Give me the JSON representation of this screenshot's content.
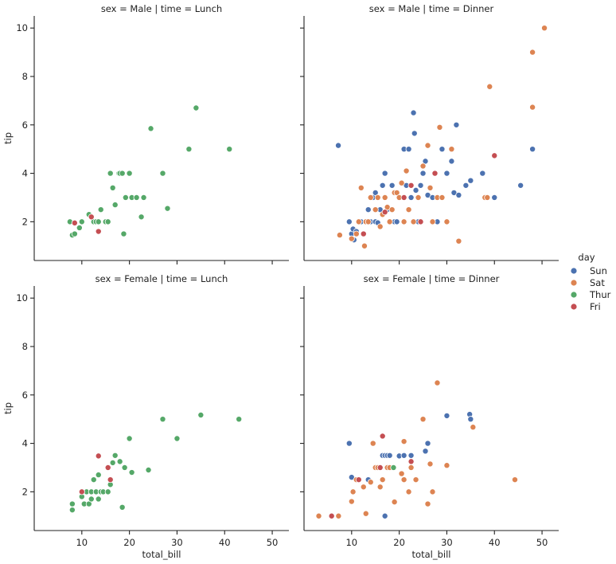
{
  "chart_data": {
    "type": "scatter",
    "xlabel": "total_bill",
    "ylabel": "tip",
    "xlim": [
      0,
      53.5
    ],
    "ylim": [
      0.4,
      10.5
    ],
    "xticks": [
      10,
      20,
      30,
      40,
      50
    ],
    "yticks": [
      2,
      4,
      6,
      8,
      10
    ],
    "legend": {
      "title": "day",
      "placement": "center-right",
      "entries": [
        {
          "label": "Sun",
          "color": "#4c72b0"
        },
        {
          "label": "Sat",
          "color": "#dd8452"
        },
        {
          "label": "Thur",
          "color": "#55a868"
        },
        {
          "label": "Fri",
          "color": "#c44e52"
        }
      ]
    },
    "panels": [
      {
        "title": "sex = Male | time = Lunch",
        "series": [
          {
            "name": "Thur",
            "points": [
              [
                7.5,
                2.0
              ],
              [
                8.0,
                1.45
              ],
              [
                8.5,
                1.5
              ],
              [
                9.5,
                1.75
              ],
              [
                10.0,
                2.0
              ],
              [
                11.5,
                2.3
              ],
              [
                12.5,
                2.0
              ],
              [
                13.0,
                2.0
              ],
              [
                13.5,
                2.0
              ],
              [
                14.0,
                2.5
              ],
              [
                15.0,
                2.0
              ],
              [
                15.5,
                2.0
              ],
              [
                16.0,
                4.0
              ],
              [
                16.5,
                3.4
              ],
              [
                17.0,
                2.7
              ],
              [
                17.8,
                4.0
              ],
              [
                18.0,
                4.0
              ],
              [
                18.5,
                4.0
              ],
              [
                18.8,
                1.5
              ],
              [
                19.2,
                3.0
              ],
              [
                20.0,
                4.0
              ],
              [
                20.5,
                3.0
              ],
              [
                21.5,
                3.0
              ],
              [
                22.5,
                2.2
              ],
              [
                23.0,
                3.0
              ],
              [
                24.5,
                5.85
              ],
              [
                27.0,
                4.0
              ],
              [
                28.0,
                2.55
              ],
              [
                32.5,
                5.0
              ],
              [
                34.0,
                6.7
              ],
              [
                41.0,
                5.0
              ]
            ]
          },
          {
            "name": "Fri",
            "points": [
              [
                8.5,
                1.95
              ],
              [
                12.0,
                2.2
              ],
              [
                13.5,
                1.6
              ]
            ]
          }
        ]
      },
      {
        "title": "sex = Male | time = Dinner",
        "series": [
          {
            "name": "Sun",
            "points": [
              [
                7.2,
                5.15
              ],
              [
                9.5,
                2.0
              ],
              [
                10.0,
                1.5
              ],
              [
                10.3,
                1.7
              ],
              [
                10.5,
                1.25
              ],
              [
                11.0,
                1.6
              ],
              [
                12.0,
                2.0
              ],
              [
                13.0,
                2.0
              ],
              [
                13.5,
                2.5
              ],
              [
                14.0,
                2.0
              ],
              [
                14.5,
                3.0
              ],
              [
                15.0,
                2.0
              ],
              [
                15.0,
                3.2
              ],
              [
                15.5,
                1.96
              ],
              [
                16.0,
                2.5
              ],
              [
                16.5,
                3.5
              ],
              [
                17.0,
                4.0
              ],
              [
                17.5,
                2.5
              ],
              [
                18.0,
                2.0
              ],
              [
                18.5,
                3.5
              ],
              [
                19.0,
                2.0
              ],
              [
                19.5,
                2.0
              ],
              [
                20.0,
                3.0
              ],
              [
                21.0,
                5.0
              ],
              [
                21.5,
                3.5
              ],
              [
                22.0,
                5.0
              ],
              [
                22.5,
                3.0
              ],
              [
                23.0,
                6.5
              ],
              [
                23.2,
                5.65
              ],
              [
                23.5,
                3.3
              ],
              [
                24.0,
                2.0
              ],
              [
                24.5,
                3.5
              ],
              [
                25.0,
                4.0
              ],
              [
                25.5,
                4.5
              ],
              [
                26.0,
                3.1
              ],
              [
                27.0,
                3.0
              ],
              [
                28.0,
                2.0
              ],
              [
                29.0,
                5.0
              ],
              [
                30.0,
                4.0
              ],
              [
                31.0,
                4.5
              ],
              [
                31.5,
                3.2
              ],
              [
                32.0,
                6.0
              ],
              [
                32.5,
                3.1
              ],
              [
                34.0,
                3.5
              ],
              [
                35.0,
                3.7
              ],
              [
                37.5,
                4.0
              ],
              [
                38.0,
                3.0
              ],
              [
                40.0,
                3.0
              ],
              [
                45.5,
                3.5
              ],
              [
                48.0,
                5.0
              ]
            ]
          },
          {
            "name": "Sat",
            "points": [
              [
                7.5,
                1.45
              ],
              [
                10.0,
                1.3
              ],
              [
                11.0,
                1.5
              ],
              [
                11.5,
                2.0
              ],
              [
                12.0,
                3.4
              ],
              [
                12.5,
                1.5
              ],
              [
                12.7,
                1.0
              ],
              [
                13.0,
                2.0
              ],
              [
                13.5,
                2.0
              ],
              [
                14.0,
                3.0
              ],
              [
                15.0,
                2.5
              ],
              [
                15.5,
                3.0
              ],
              [
                16.0,
                1.8
              ],
              [
                16.5,
                2.3
              ],
              [
                17.0,
                3.0
              ],
              [
                17.5,
                2.6
              ],
              [
                18.0,
                2.0
              ],
              [
                18.5,
                2.5
              ],
              [
                19.0,
                3.2
              ],
              [
                19.5,
                3.2
              ],
              [
                20.0,
                3.0
              ],
              [
                20.5,
                3.6
              ],
              [
                21.0,
                2.0
              ],
              [
                21.5,
                4.1
              ],
              [
                22.0,
                2.5
              ],
              [
                23.0,
                2.0
              ],
              [
                24.0,
                3.0
              ],
              [
                25.0,
                4.3
              ],
              [
                26.0,
                5.15
              ],
              [
                26.5,
                3.4
              ],
              [
                27.0,
                2.0
              ],
              [
                28.0,
                3.0
              ],
              [
                28.5,
                5.9
              ],
              [
                29.0,
                3.0
              ],
              [
                30.0,
                2.0
              ],
              [
                31.0,
                5.0
              ],
              [
                32.5,
                1.2
              ],
              [
                38.0,
                3.0
              ],
              [
                38.5,
                3.0
              ],
              [
                39.0,
                7.58
              ],
              [
                48.0,
                9.0
              ],
              [
                48.0,
                6.73
              ],
              [
                50.5,
                10.0
              ]
            ]
          },
          {
            "name": "Fri",
            "points": [
              [
                12.5,
                1.5
              ],
              [
                17.0,
                2.4
              ],
              [
                21.0,
                3.0
              ],
              [
                22.5,
                3.5
              ],
              [
                24.5,
                2.0
              ],
              [
                27.5,
                4.0
              ],
              [
                40.0,
                4.73
              ]
            ]
          }
        ]
      },
      {
        "title": "sex = Female | time = Lunch",
        "series": [
          {
            "name": "Thur",
            "points": [
              [
                8.0,
                1.25
              ],
              [
                8.0,
                1.5
              ],
              [
                10.0,
                1.8
              ],
              [
                10.5,
                1.5
              ],
              [
                11.0,
                2.0
              ],
              [
                11.5,
                1.5
              ],
              [
                12.0,
                1.7
              ],
              [
                12.0,
                2.0
              ],
              [
                12.5,
                2.5
              ],
              [
                13.0,
                2.0
              ],
              [
                13.5,
                1.7
              ],
              [
                13.5,
                2.7
              ],
              [
                14.0,
                2.0
              ],
              [
                14.5,
                2.0
              ],
              [
                15.5,
                2.0
              ],
              [
                16.0,
                2.3
              ],
              [
                16.5,
                3.2
              ],
              [
                17.0,
                3.5
              ],
              [
                18.0,
                3.25
              ],
              [
                18.5,
                1.36
              ],
              [
                19.0,
                3.0
              ],
              [
                20.0,
                4.2
              ],
              [
                20.5,
                2.8
              ],
              [
                24.0,
                2.9
              ],
              [
                27.0,
                5.0
              ],
              [
                30.0,
                4.2
              ],
              [
                35.0,
                5.17
              ],
              [
                43.0,
                5.0
              ]
            ]
          },
          {
            "name": "Fri",
            "points": [
              [
                10.0,
                2.0
              ],
              [
                13.5,
                3.48
              ],
              [
                15.5,
                3.0
              ],
              [
                16.0,
                2.5
              ]
            ]
          }
        ]
      },
      {
        "title": "sex = Female | time = Dinner",
        "series": [
          {
            "name": "Sun",
            "points": [
              [
                9.5,
                4.0
              ],
              [
                10.0,
                2.6
              ],
              [
                13.5,
                2.5
              ],
              [
                15.0,
                3.0
              ],
              [
                16.5,
                3.5
              ],
              [
                17.0,
                1.0
              ],
              [
                17.0,
                3.5
              ],
              [
                17.5,
                3.5
              ],
              [
                18.0,
                3.5
              ],
              [
                18.5,
                3.0
              ],
              [
                20.0,
                3.48
              ],
              [
                21.0,
                3.5
              ],
              [
                22.5,
                3.5
              ],
              [
                25.5,
                3.68
              ],
              [
                26.0,
                4.0
              ],
              [
                30.0,
                5.14
              ],
              [
                34.8,
                5.2
              ],
              [
                35.0,
                5.0
              ]
            ]
          },
          {
            "name": "Sat",
            "points": [
              [
                3.1,
                1.0
              ],
              [
                5.75,
                1.0
              ],
              [
                7.25,
                1.0
              ],
              [
                10.0,
                1.6
              ],
              [
                10.3,
                2.0
              ],
              [
                11.0,
                2.5
              ],
              [
                12.5,
                2.2
              ],
              [
                13.0,
                1.1
              ],
              [
                14.0,
                2.4
              ],
              [
                14.5,
                4.0
              ],
              [
                15.0,
                3.0
              ],
              [
                15.5,
                3.0
              ],
              [
                16.0,
                2.2
              ],
              [
                16.5,
                2.5
              ],
              [
                17.5,
                3.0
              ],
              [
                18.0,
                3.0
              ],
              [
                19.0,
                1.58
              ],
              [
                20.5,
                2.75
              ],
              [
                21.0,
                2.5
              ],
              [
                21.0,
                4.08
              ],
              [
                22.0,
                2.0
              ],
              [
                22.5,
                3.0
              ],
              [
                23.5,
                2.5
              ],
              [
                25.0,
                5.0
              ],
              [
                26.0,
                1.5
              ],
              [
                26.5,
                3.15
              ],
              [
                27.0,
                2.0
              ],
              [
                28.0,
                6.5
              ],
              [
                30.0,
                3.09
              ],
              [
                35.5,
                4.67
              ],
              [
                44.3,
                2.5
              ]
            ]
          },
          {
            "name": "Thur",
            "points": [
              [
                18.8,
                3.0
              ]
            ]
          },
          {
            "name": "Fri",
            "points": [
              [
                5.8,
                1.0
              ],
              [
                11.5,
                2.5
              ],
              [
                16.0,
                3.0
              ],
              [
                16.5,
                4.3
              ],
              [
                22.5,
                3.25
              ]
            ]
          }
        ]
      }
    ]
  }
}
